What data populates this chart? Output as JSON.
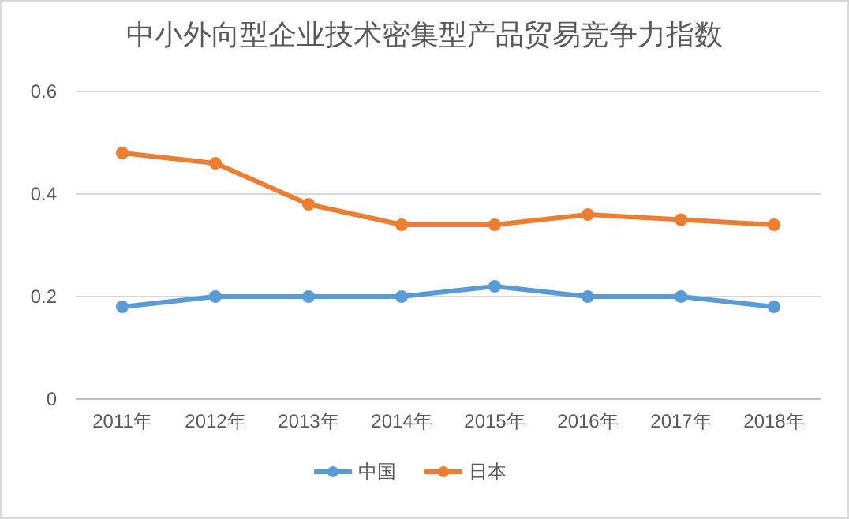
{
  "chart_data": {
    "type": "line",
    "title": "中小外向型企业技术密集型产品贸易竞争力指数",
    "categories": [
      "2011年",
      "2012年",
      "2013年",
      "2014年",
      "2015年",
      "2016年",
      "2017年",
      "2018年"
    ],
    "series": [
      {
        "name": "中国",
        "color": "#5b9bd5",
        "values": [
          0.18,
          0.2,
          0.2,
          0.2,
          0.22,
          0.2,
          0.2,
          0.18
        ]
      },
      {
        "name": "日本",
        "color": "#ed7d31",
        "values": [
          0.48,
          0.46,
          0.38,
          0.34,
          0.34,
          0.36,
          0.35,
          0.34
        ]
      }
    ],
    "ylim": [
      0,
      0.6
    ],
    "yticks": [
      0,
      0.2,
      0.4,
      0.6
    ],
    "grid": "y",
    "legend": "bottom",
    "marker": "circle",
    "line_style": "solid"
  }
}
